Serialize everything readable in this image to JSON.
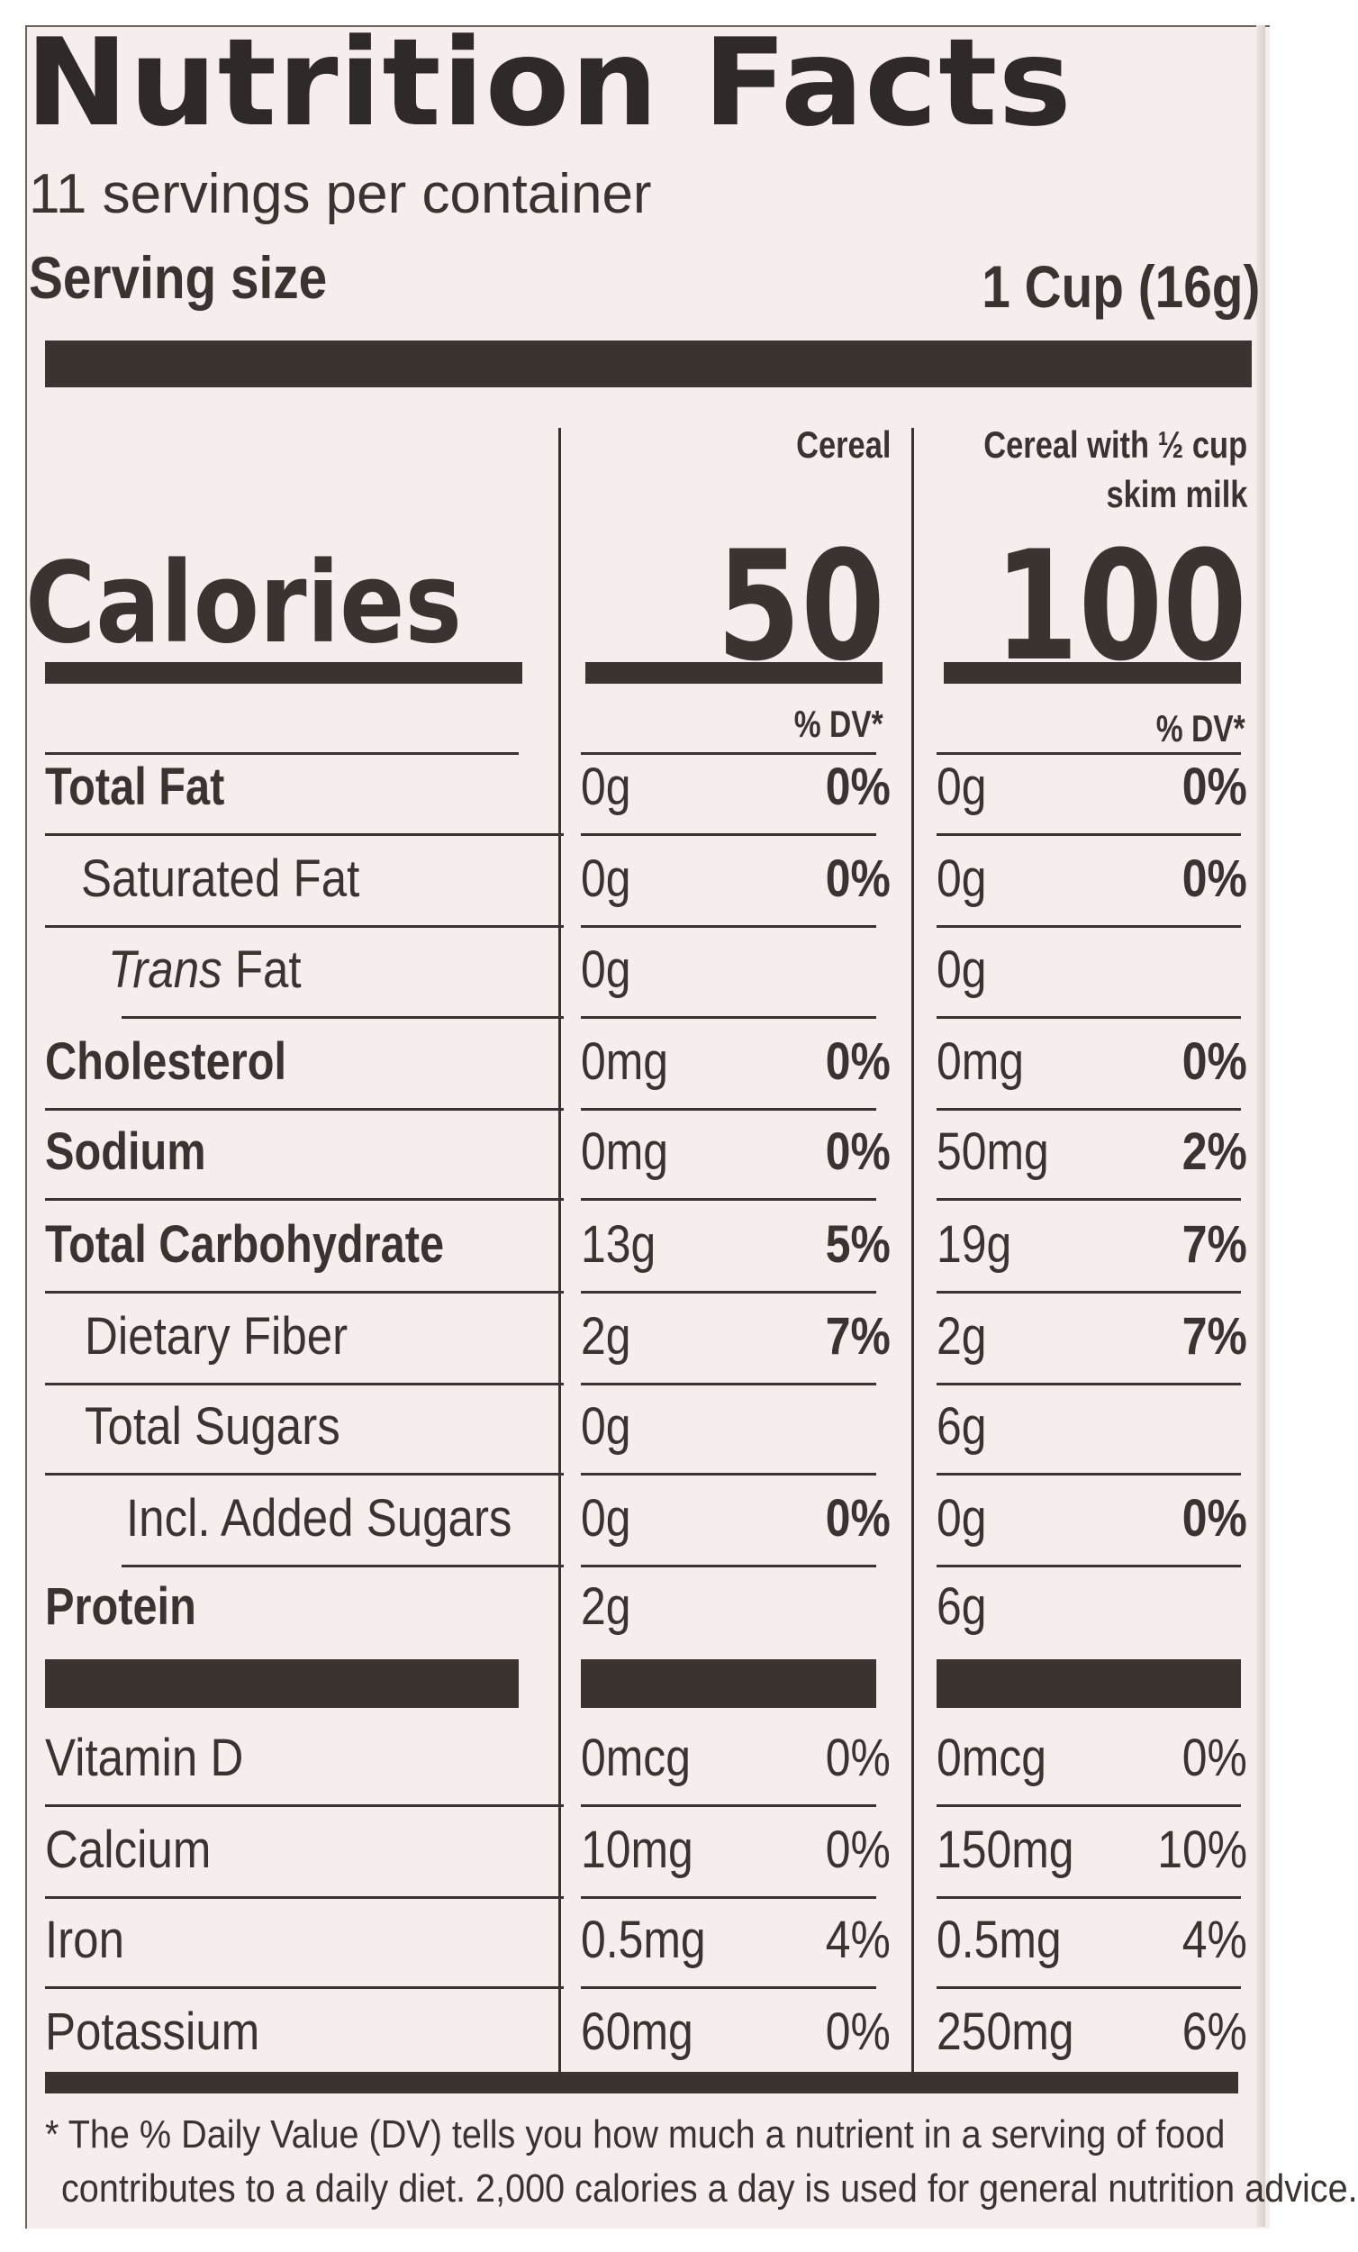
{
  "title": "Nutrition Facts",
  "servings_per_container": "11 servings per container",
  "serving_size": {
    "label": "Serving size",
    "value": "1 Cup (16g)"
  },
  "columns": [
    {
      "heading_line1": "Cereal",
      "heading_line2": "",
      "calories": "50",
      "dv_header": "% DV*"
    },
    {
      "heading_line1": "Cereal with ½ cup",
      "heading_line2": "skim milk",
      "calories": "100",
      "dv_header": "% DV*"
    }
  ],
  "calories_label": "Calories",
  "nutrients": [
    {
      "name": "Total Fat",
      "c1_amount": "0g",
      "c1_dv": "0%",
      "c2_amount": "0g",
      "c2_dv": "0%"
    },
    {
      "name": "Saturated Fat",
      "c1_amount": "0g",
      "c1_dv": "0%",
      "c2_amount": "0g",
      "c2_dv": "0%"
    },
    {
      "name_italic": "Trans",
      "name": "Fat",
      "c1_amount": "0g",
      "c1_dv": "",
      "c2_amount": "0g",
      "c2_dv": ""
    },
    {
      "name": "Cholesterol",
      "c1_amount": "0mg",
      "c1_dv": "0%",
      "c2_amount": "0mg",
      "c2_dv": "0%"
    },
    {
      "name": "Sodium",
      "c1_amount": "0mg",
      "c1_dv": "0%",
      "c2_amount": "50mg",
      "c2_dv": "2%"
    },
    {
      "name": "Total Carbohydrate",
      "c1_amount": "13g",
      "c1_dv": "5%",
      "c2_amount": "19g",
      "c2_dv": "7%"
    },
    {
      "name": "Dietary Fiber",
      "c1_amount": "2g",
      "c1_dv": "7%",
      "c2_amount": "2g",
      "c2_dv": "7%"
    },
    {
      "name": "Total Sugars",
      "c1_amount": "0g",
      "c1_dv": "",
      "c2_amount": "6g",
      "c2_dv": ""
    },
    {
      "name": "Incl. Added Sugars",
      "c1_amount": "0g",
      "c1_dv": "0%",
      "c2_amount": "0g",
      "c2_dv": "0%"
    },
    {
      "name": "Protein",
      "c1_amount": "2g",
      "c1_dv": "",
      "c2_amount": "6g",
      "c2_dv": ""
    }
  ],
  "vitamins": [
    {
      "name": "Vitamin D",
      "c1_amount": "0mcg",
      "c1_dv": "0%",
      "c2_amount": "0mcg",
      "c2_dv": "0%"
    },
    {
      "name": "Calcium",
      "c1_amount": "10mg",
      "c1_dv": "0%",
      "c2_amount": "150mg",
      "c2_dv": "10%"
    },
    {
      "name": "Iron",
      "c1_amount": "0.5mg",
      "c1_dv": "4%",
      "c2_amount": "0.5mg",
      "c2_dv": "4%"
    },
    {
      "name": "Potassium",
      "c1_amount": "60mg",
      "c1_dv": "0%",
      "c2_amount": "250mg",
      "c2_dv": "6%"
    }
  ],
  "footnote": {
    "line1": "* The % Daily Value (DV) tells you how much a nutrient in a serving of food",
    "line2": "contributes to a daily diet. 2,000 calories a day is used for general nutrition advice."
  }
}
